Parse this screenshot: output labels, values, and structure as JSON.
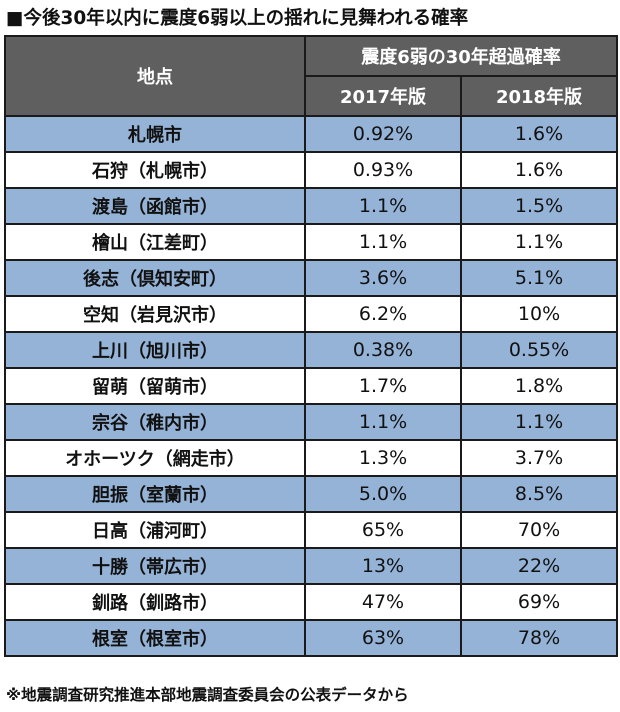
{
  "title": "■今後30年以内に震度6弱以上の揺れに見舞われる確率",
  "table": {
    "place_header": "地点",
    "group_header": "震度6弱の30年超過確率",
    "col_2017": "2017年版",
    "col_2018": "2018年版",
    "rows": [
      {
        "place": "札幌市",
        "v2017": "0.92%",
        "v2018": "1.6%"
      },
      {
        "place": "石狩（札幌市）",
        "v2017": "0.93%",
        "v2018": "1.6%"
      },
      {
        "place": "渡島（函館市）",
        "v2017": "1.1%",
        "v2018": "1.5%"
      },
      {
        "place": "檜山（江差町）",
        "v2017": "1.1%",
        "v2018": "1.1%"
      },
      {
        "place": "後志（倶知安町）",
        "v2017": "3.6%",
        "v2018": "5.1%"
      },
      {
        "place": "空知（岩見沢市）",
        "v2017": "6.2%",
        "v2018": "10%"
      },
      {
        "place": "上川（旭川市）",
        "v2017": "0.38%",
        "v2018": "0.55%"
      },
      {
        "place": "留萌（留萌市）",
        "v2017": "1.7%",
        "v2018": "1.8%"
      },
      {
        "place": "宗谷（稚内市）",
        "v2017": "1.1%",
        "v2018": "1.1%"
      },
      {
        "place": "オホーツク（網走市）",
        "v2017": "1.3%",
        "v2018": "3.7%"
      },
      {
        "place": "胆振（室蘭市）",
        "v2017": "5.0%",
        "v2018": "8.5%"
      },
      {
        "place": "日高（浦河町）",
        "v2017": "65%",
        "v2018": "70%"
      },
      {
        "place": "十勝（帯広市）",
        "v2017": "13%",
        "v2018": "22%"
      },
      {
        "place": "釧路（釧路市）",
        "v2017": "47%",
        "v2018": "69%"
      },
      {
        "place": "根室（根室市）",
        "v2017": "63%",
        "v2018": "78%"
      }
    ]
  },
  "footnote": "※地震調査研究推進本部地震調査委員会の公表データから",
  "colors": {
    "header_bg": "#5f5f5f",
    "row_blue": "#95b3d7",
    "row_white": "#ffffff"
  }
}
